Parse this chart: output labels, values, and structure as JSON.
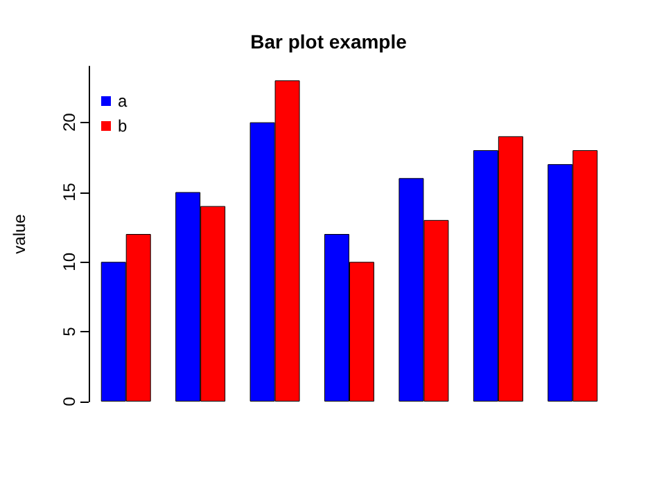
{
  "chart_data": {
    "type": "bar",
    "title": "Bar plot example",
    "ylabel": "value",
    "categories": [
      null,
      null,
      null,
      null,
      null,
      null,
      null
    ],
    "series": [
      {
        "name": "a",
        "color": "#0000ff",
        "values": [
          10,
          15,
          20,
          12,
          16,
          18,
          17
        ]
      },
      {
        "name": "b",
        "color": "#ff0000",
        "values": [
          12,
          14,
          23,
          10,
          13,
          19,
          18
        ]
      }
    ],
    "ylim": [
      0,
      24
    ],
    "yticks": [
      0,
      5,
      10,
      15,
      20
    ],
    "grid": false,
    "legend": "top left"
  }
}
